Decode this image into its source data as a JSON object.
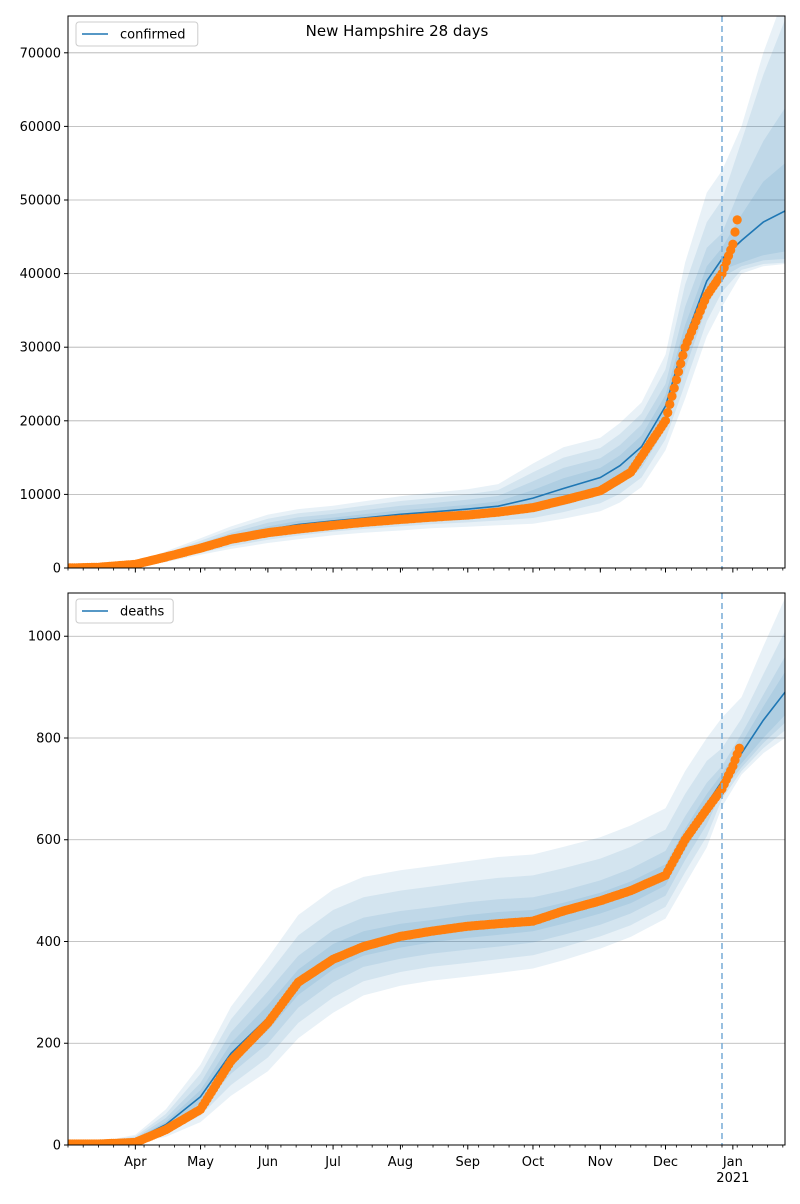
{
  "figure": {
    "title": "New Hampshire 28 days",
    "forecast_start_date": "2020-12-27",
    "colors": {
      "model_line": "#1f77b4",
      "observed": "#ff7f0e",
      "band": "#1f77b4",
      "grid": "#b0b0b0",
      "forecast_line": "#7fb0d8"
    }
  },
  "chart_data": [
    {
      "type": "line",
      "legend_label": "confirmed",
      "legend_location": "upper-left",
      "xlim": [
        "2020-03-01",
        "2021-01-25"
      ],
      "ylim": [
        0,
        75000
      ],
      "y_ticks": [
        0,
        10000,
        20000,
        30000,
        40000,
        50000,
        60000,
        70000
      ],
      "x_ticks": [
        {
          "date": "2020-04-01",
          "label": "Apr"
        },
        {
          "date": "2020-05-01",
          "label": "May"
        },
        {
          "date": "2020-06-01",
          "label": "Jun"
        },
        {
          "date": "2020-07-01",
          "label": "Jul"
        },
        {
          "date": "2020-08-01",
          "label": "Aug"
        },
        {
          "date": "2020-09-01",
          "label": "Sep"
        },
        {
          "date": "2020-10-01",
          "label": "Oct"
        },
        {
          "date": "2020-11-01",
          "label": "Nov"
        },
        {
          "date": "2020-12-01",
          "label": "Dec"
        },
        {
          "date": "2021-01-01",
          "label": "Jan",
          "sublabel": "2021"
        }
      ],
      "grid": "y",
      "model": {
        "x": [
          "2020-03-01",
          "2020-03-15",
          "2020-04-01",
          "2020-04-15",
          "2020-05-01",
          "2020-05-15",
          "2020-06-01",
          "2020-06-15",
          "2020-07-01",
          "2020-07-15",
          "2020-08-01",
          "2020-08-15",
          "2020-09-01",
          "2020-09-15",
          "2020-10-01",
          "2020-10-15",
          "2020-11-01",
          "2020-11-10",
          "2020-11-20",
          "2020-12-01",
          "2020-12-10",
          "2020-12-20",
          "2020-12-27",
          "2021-01-05",
          "2021-01-15",
          "2021-01-25"
        ],
        "median": [
          0,
          100,
          400,
          1400,
          2800,
          4000,
          5200,
          5900,
          6400,
          6800,
          7300,
          7600,
          8000,
          8400,
          9500,
          10800,
          12300,
          13900,
          16500,
          22000,
          31000,
          39000,
          42000,
          44500,
          47000,
          48500
        ],
        "bands": [
          {
            "lower": [
              0,
              80,
              360,
              1250,
              2550,
              3650,
              4750,
              5400,
              5950,
              6300,
              6750,
              7050,
              7400,
              7750,
              8400,
              9400,
              11000,
              12500,
              15000,
              20500,
              29000,
              37000,
              40500,
              41500,
              42500,
              43000
            ],
            "upper": [
              0,
              120,
              450,
              1550,
              3050,
              4350,
              5650,
              6400,
              6850,
              7300,
              7850,
              8150,
              8600,
              9050,
              10600,
              12200,
              13600,
              15300,
              18000,
              23500,
              33000,
              41000,
              43500,
              48000,
              52500,
              55000
            ]
          },
          {
            "lower": [
              0,
              60,
              320,
              1100,
              2300,
              3300,
              4300,
              4900,
              5450,
              5800,
              6200,
              6500,
              6800,
              7100,
              7600,
              8500,
              9900,
              11300,
              13600,
              19000,
              27000,
              35500,
              39500,
              41000,
              41800,
              42000
            ],
            "upper": [
              0,
              140,
              500,
              1750,
              3350,
              4750,
              6150,
              6900,
              7350,
              7850,
              8450,
              8800,
              9300,
              9800,
              11800,
              13600,
              14900,
              16700,
              19500,
              25000,
              35500,
              43500,
              45500,
              52000,
              58000,
              62500
            ]
          },
          {
            "lower": [
              0,
              40,
              270,
              950,
              2050,
              2950,
              3850,
              4400,
              4950,
              5300,
              5650,
              5950,
              6200,
              6450,
              6800,
              7600,
              8800,
              10100,
              12300,
              17500,
              25000,
              33500,
              37500,
              40500,
              41300,
              41500
            ],
            "upper": [
              0,
              170,
              560,
              2000,
              3700,
              5200,
              6700,
              7450,
              7900,
              8450,
              9100,
              9500,
              10000,
              10600,
              13000,
              15000,
              16300,
              18200,
              21000,
              27000,
              38500,
              47000,
              50000,
              58000,
              67000,
              74500
            ]
          },
          {
            "lower": [
              0,
              25,
              220,
              800,
              1800,
              2600,
              3400,
              3900,
              4450,
              4800,
              5100,
              5400,
              5600,
              5800,
              6000,
              6700,
              7700,
              8900,
              11000,
              16000,
              23000,
              31500,
              35500,
              40000,
              41000,
              41300
            ],
            "upper": [
              0,
              200,
              620,
              2250,
              4050,
              5650,
              7250,
              8000,
              8450,
              9050,
              9750,
              10200,
              10700,
              11400,
              14200,
              16400,
              17700,
              19700,
              22500,
              29000,
              41500,
              51000,
              54000,
              60000,
              70000,
              78000
            ]
          }
        ]
      },
      "observed": {
        "x": [
          "2020-03-01",
          "2020-03-15",
          "2020-04-01",
          "2020-04-15",
          "2020-05-01",
          "2020-05-15",
          "2020-06-01",
          "2020-06-15",
          "2020-07-01",
          "2020-07-15",
          "2020-08-01",
          "2020-08-15",
          "2020-09-01",
          "2020-09-15",
          "2020-10-01",
          "2020-10-15",
          "2020-11-01",
          "2020-11-15",
          "2020-12-01",
          "2020-12-10",
          "2020-12-20",
          "2020-12-27",
          "2021-01-01",
          "2021-01-03"
        ],
        "y": [
          0,
          100,
          500,
          1500,
          2700,
          3900,
          4800,
          5300,
          5800,
          6200,
          6600,
          6900,
          7200,
          7600,
          8200,
          9200,
          10500,
          13000,
          20000,
          30000,
          37000,
          40000,
          44000,
          47300
        ]
      }
    },
    {
      "type": "line",
      "legend_label": "deaths",
      "legend_location": "upper-left",
      "xlim": [
        "2020-03-01",
        "2021-01-25"
      ],
      "ylim": [
        0,
        1085
      ],
      "y_ticks": [
        0,
        200,
        400,
        600,
        800,
        1000
      ],
      "x_ticks": [
        {
          "date": "2020-04-01",
          "label": "Apr"
        },
        {
          "date": "2020-05-01",
          "label": "May"
        },
        {
          "date": "2020-06-01",
          "label": "Jun"
        },
        {
          "date": "2020-07-01",
          "label": "Jul"
        },
        {
          "date": "2020-08-01",
          "label": "Aug"
        },
        {
          "date": "2020-09-01",
          "label": "Sep"
        },
        {
          "date": "2020-10-01",
          "label": "Oct"
        },
        {
          "date": "2020-11-01",
          "label": "Nov"
        },
        {
          "date": "2020-12-01",
          "label": "Dec"
        },
        {
          "date": "2021-01-01",
          "label": "Jan",
          "sublabel": "2021"
        }
      ],
      "grid": "y",
      "model": {
        "x": [
          "2020-03-01",
          "2020-03-15",
          "2020-04-01",
          "2020-04-15",
          "2020-05-01",
          "2020-05-15",
          "2020-06-01",
          "2020-06-15",
          "2020-07-01",
          "2020-07-15",
          "2020-08-01",
          "2020-08-15",
          "2020-09-01",
          "2020-09-15",
          "2020-10-01",
          "2020-10-15",
          "2020-11-01",
          "2020-11-15",
          "2020-12-01",
          "2020-12-10",
          "2020-12-20",
          "2020-12-27",
          "2021-01-05",
          "2021-01-15",
          "2021-01-25"
        ],
        "median": [
          0,
          2,
          10,
          40,
          95,
          180,
          250,
          320,
          370,
          395,
          410,
          420,
          430,
          435,
          440,
          455,
          475,
          495,
          530,
          600,
          670,
          715,
          770,
          835,
          890
        ],
        "bands": [
          {
            "lower": [
              0,
              1,
              8,
              34,
              82,
              160,
              225,
              295,
              345,
              372,
              388,
              398,
              407,
              413,
              420,
              435,
              455,
              475,
              510,
              580,
              650,
              705,
              750,
              800,
              845
            ],
            "upper": [
              0,
              3,
              12,
              46,
              108,
              200,
              275,
              345,
              395,
              420,
              435,
              442,
              452,
              458,
              462,
              476,
              496,
              518,
              552,
              622,
              690,
              730,
              790,
              862,
              930
            ]
          },
          {
            "lower": [
              0,
              1,
              7,
              29,
              72,
              140,
              200,
              270,
              320,
              350,
              366,
              376,
              384,
              390,
              398,
              413,
              433,
              455,
              490,
              560,
              630,
              695,
              742,
              790,
              830
            ],
            "upper": [
              0,
              4,
              14,
              53,
              122,
              222,
              302,
              372,
              422,
              447,
              460,
              467,
              477,
              483,
              487,
              500,
              520,
              543,
              578,
              646,
              712,
              745,
              808,
              885,
              960
            ]
          },
          {
            "lower": [
              0,
              0,
              5,
              22,
              58,
              118,
              172,
              240,
              290,
              322,
              340,
              350,
              358,
              365,
              373,
              389,
              410,
              432,
              468,
              536,
              607,
              680,
              735,
              780,
              815
            ],
            "upper": [
              0,
              5,
              17,
              61,
              140,
              247,
              335,
              412,
              462,
              487,
              500,
              508,
              518,
              525,
              530,
              544,
              563,
              586,
              620,
              690,
              755,
              780,
              838,
              925,
              1010
            ]
          },
          {
            "lower": [
              0,
              0,
              4,
              16,
              45,
              97,
              145,
              210,
              260,
              294,
              313,
              323,
              331,
              338,
              347,
              363,
              386,
              409,
              445,
              512,
              585,
              665,
              728,
              770,
              800
            ],
            "upper": [
              0,
              6,
              20,
              70,
              158,
              272,
              368,
              452,
              502,
              527,
              540,
              548,
              558,
              566,
              571,
              586,
              605,
              628,
              662,
              735,
              800,
              840,
              880,
              980,
              1075
            ]
          }
        ]
      },
      "observed": {
        "x": [
          "2020-03-01",
          "2020-03-15",
          "2020-04-01",
          "2020-04-15",
          "2020-05-01",
          "2020-05-15",
          "2020-06-01",
          "2020-06-15",
          "2020-07-01",
          "2020-07-15",
          "2020-08-01",
          "2020-08-15",
          "2020-09-01",
          "2020-09-15",
          "2020-10-01",
          "2020-10-15",
          "2020-11-01",
          "2020-11-15",
          "2020-12-01",
          "2020-12-10",
          "2020-12-20",
          "2020-12-27",
          "2021-01-01",
          "2021-01-04"
        ],
        "y": [
          2,
          2,
          5,
          30,
          70,
          165,
          240,
          320,
          365,
          390,
          410,
          420,
          430,
          435,
          440,
          460,
          480,
          500,
          530,
          600,
          660,
          700,
          745,
          780
        ]
      }
    }
  ]
}
